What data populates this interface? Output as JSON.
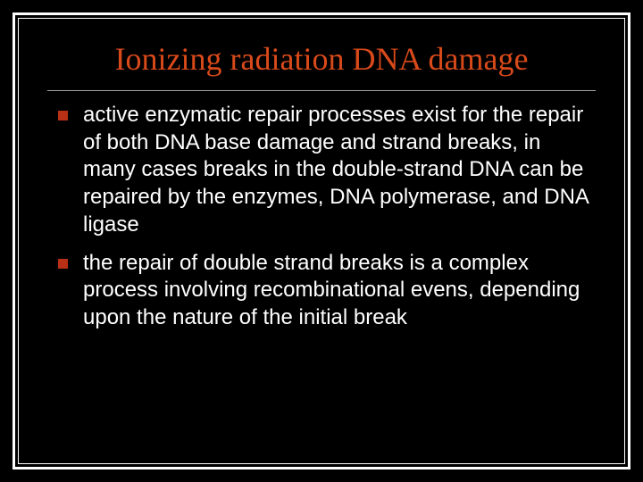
{
  "slide": {
    "title": "Ionizing radiation DNA damage",
    "bullets": [
      "active enzymatic repair processes exist for the repair of both DNA base damage and strand breaks, in many cases breaks in the double-strand DNA can be repaired by the enzymes, DNA polymerase, and DNA ligase",
      "the repair of double strand breaks is a complex process involving recombinational evens, depending upon the nature of the initial break"
    ],
    "colors": {
      "background": "#000000",
      "title": "#d94a1a",
      "body_text": "#ffffff",
      "bullet_marker": "#b83015",
      "border": "#ffffff",
      "title_underline": "#a0a0a0"
    },
    "typography": {
      "title_font": "Times New Roman",
      "title_size_pt": 36,
      "body_font": "Arial",
      "body_size_pt": 24
    }
  }
}
